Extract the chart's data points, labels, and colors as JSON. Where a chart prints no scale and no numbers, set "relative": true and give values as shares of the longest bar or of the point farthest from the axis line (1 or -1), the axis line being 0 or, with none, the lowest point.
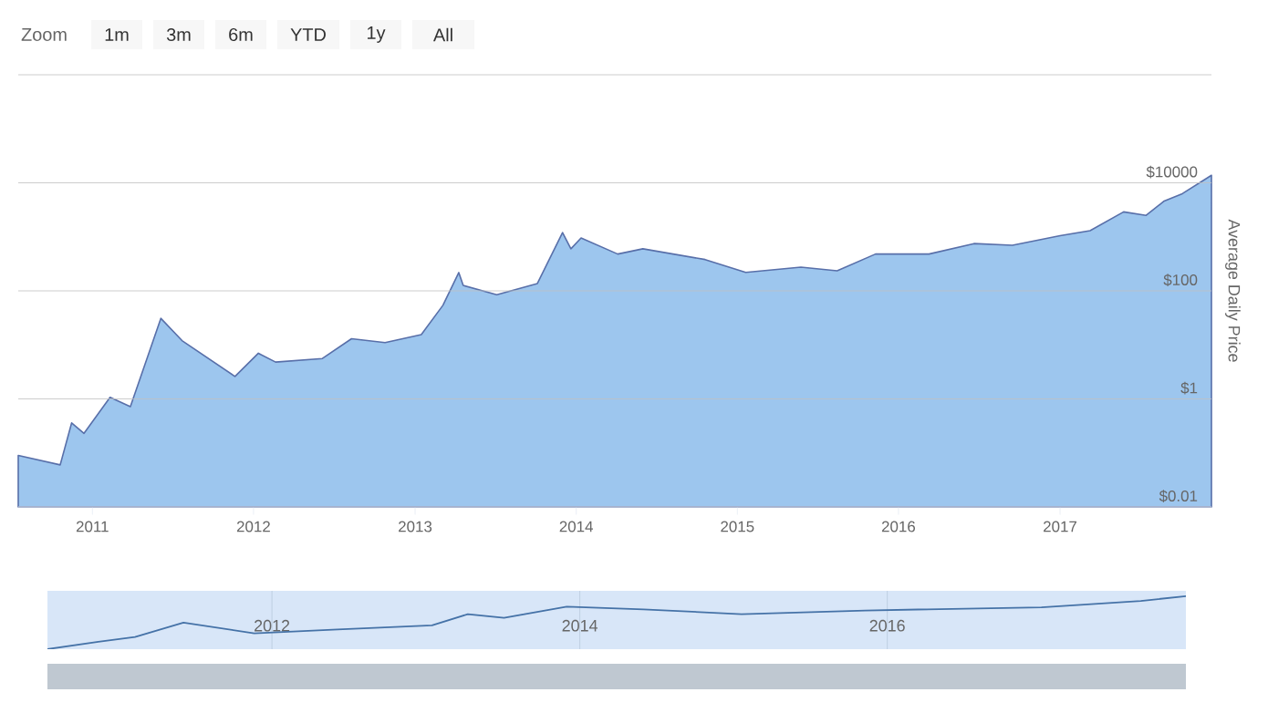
{
  "chart_data": [
    {
      "type": "area",
      "ylabel": "Average Daily Price",
      "log": "y",
      "grid": "y",
      "annotations": [
        "Zoom",
        "1m",
        "3m",
        "6m",
        "YTD",
        "1y",
        "All"
      ],
      "x": [
        "2010-07-17",
        "2010-10-20",
        "2010-11-15",
        "2010-12-13",
        "2011-02-10",
        "2011-03-28",
        "2011-06-05",
        "2011-07-23",
        "2011-11-20",
        "2012-01-12",
        "2012-02-20",
        "2012-06-05",
        "2012-08-10",
        "2012-10-25",
        "2013-01-15",
        "2013-03-05",
        "2013-04-10",
        "2013-04-20",
        "2013-07-05",
        "2013-10-05",
        "2013-12-01",
        "2013-12-20",
        "2014-01-12",
        "2014-04-05",
        "2014-06-01",
        "2014-10-20",
        "2015-01-20",
        "2015-05-25",
        "2015-08-15",
        "2015-11-10",
        "2016-03-10",
        "2016-06-20",
        "2016-09-15",
        "2017-01-01",
        "2017-03-10",
        "2017-05-25",
        "2017-07-15",
        "2017-08-25",
        "2017-10-05",
        "2017-12-10"
      ],
      "values": [
        0.09,
        0.06,
        0.36,
        0.23,
        1.07,
        0.72,
        31,
        12,
        2.6,
        7,
        4.8,
        5.6,
        13,
        11,
        15.5,
        54,
        218,
        126,
        85,
        137,
        1200,
        600,
        950,
        480,
        600,
        380,
        220,
        275,
        235,
        480,
        480,
        750,
        700,
        1050,
        1300,
        2900,
        2500,
        4600,
        6300,
        13800
      ],
      "color": "#9dc6ee",
      "xlim": [
        "2010-07-17",
        "2017-12-10"
      ],
      "xticks": [
        "2011",
        "2012",
        "2013",
        "2014",
        "2015",
        "2016",
        "2017"
      ],
      "ylim": [
        0.01,
        1000000
      ],
      "yticks": [
        {
          "value": 0.01,
          "label": "$0.01"
        },
        {
          "value": 1,
          "label": "$1"
        },
        {
          "value": 100,
          "label": "$100"
        },
        {
          "value": 10000,
          "label": "$10000"
        },
        {
          "value": 1000000,
          "label": null
        }
      ]
    },
    {
      "type": "line",
      "relative": true,
      "tick_labels": "x",
      "color": "#4572a7",
      "grid": "x",
      "x": [
        "2010-07-17",
        "2010-11-15",
        "2011-02-10",
        "2011-06-05",
        "2011-11-20",
        "2012-06-05",
        "2013-01-15",
        "2013-04-10",
        "2013-07-05",
        "2013-12-01",
        "2014-06-01",
        "2015-01-20",
        "2015-11-10",
        "2017-01-01",
        "2017-08-25",
        "2017-12-10"
      ],
      "values": [
        0,
        0.14,
        0.23,
        0.5,
        0.3,
        0.37,
        0.45,
        0.66,
        0.59,
        0.8,
        0.75,
        0.66,
        0.73,
        0.79,
        0.91,
        1
      ],
      "xlim": [
        "2010-07-17",
        "2017-12-10"
      ],
      "xticks": [
        "2012",
        "2014",
        "2016"
      ]
    }
  ]
}
